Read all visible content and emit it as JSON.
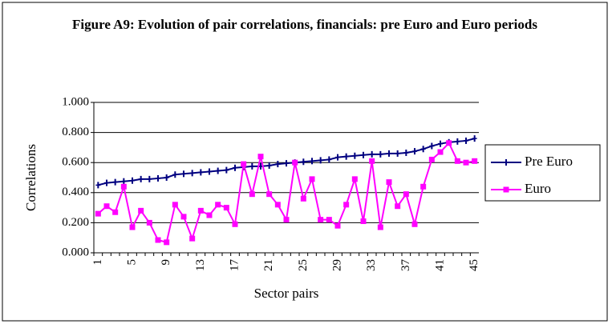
{
  "chart_data": {
    "type": "line",
    "title": "Figure A9: Evolution of pair correlations, financials: pre Euro and Euro periods",
    "x_label": "Sector pairs",
    "y_label": "Correlations",
    "categories": [
      "1",
      null,
      null,
      null,
      "5",
      null,
      null,
      null,
      "9",
      null,
      null,
      null,
      "13",
      null,
      null,
      null,
      "17",
      null,
      null,
      null,
      "21",
      null,
      null,
      null,
      "25",
      null,
      null,
      null,
      "29",
      null,
      null,
      null,
      "33",
      null,
      null,
      null,
      "37",
      null,
      null,
      null,
      "41",
      null,
      null,
      null,
      "45"
    ],
    "series": [
      {
        "name": "Pre Euro",
        "color": "#000080",
        "marker": "plus",
        "values": [
          0.45,
          0.465,
          0.47,
          0.475,
          0.48,
          0.49,
          0.49,
          0.495,
          0.5,
          0.52,
          0.525,
          0.53,
          0.535,
          0.54,
          0.545,
          0.55,
          0.565,
          0.57,
          0.575,
          0.575,
          0.58,
          0.59,
          0.595,
          0.6,
          0.605,
          0.61,
          0.615,
          0.62,
          0.635,
          0.64,
          0.645,
          0.65,
          0.655,
          0.655,
          0.66,
          0.66,
          0.665,
          0.675,
          0.69,
          0.71,
          0.725,
          0.735,
          0.74,
          0.745,
          0.76
        ]
      },
      {
        "name": "Euro",
        "color": "#ff00ff",
        "marker": "square",
        "values": [
          0.26,
          0.31,
          0.27,
          0.44,
          0.17,
          0.28,
          0.2,
          0.085,
          0.07,
          0.32,
          0.24,
          0.095,
          0.28,
          0.25,
          0.32,
          0.3,
          0.19,
          0.59,
          0.39,
          0.64,
          0.39,
          0.32,
          0.22,
          0.6,
          0.36,
          0.49,
          0.22,
          0.22,
          0.18,
          0.32,
          0.49,
          0.21,
          0.61,
          0.17,
          0.47,
          0.31,
          0.39,
          0.19,
          0.44,
          0.62,
          0.67,
          0.73,
          0.61,
          0.6,
          0.61
        ]
      }
    ],
    "ylim": [
      0,
      1
    ],
    "yticks": [
      {
        "value": 0,
        "label": "0.000"
      },
      {
        "value": 0.2,
        "label": "0.200"
      },
      {
        "value": 0.4,
        "label": "0.400"
      },
      {
        "value": 0.6,
        "label": "0.600"
      },
      {
        "value": 0.8,
        "label": "0.800"
      },
      {
        "value": 1,
        "label": "1.000"
      }
    ],
    "grid": true,
    "legend": "right"
  }
}
